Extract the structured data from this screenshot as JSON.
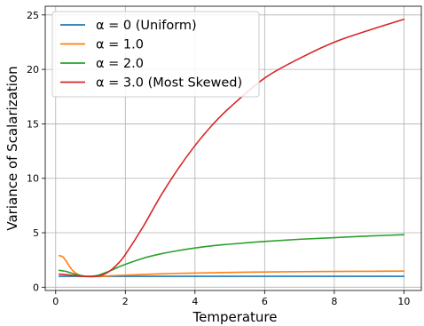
{
  "chart_data": {
    "type": "line",
    "title": "",
    "xlabel": "Temperature",
    "ylabel": "Variance of Scalarization",
    "xlim": [
      -0.3,
      10.5
    ],
    "ylim": [
      -0.3,
      25.8
    ],
    "xticks": [
      0,
      2,
      4,
      6,
      8,
      10
    ],
    "yticks": [
      0,
      5,
      10,
      15,
      20,
      25
    ],
    "grid": true,
    "legend_position": "top-left",
    "x": [
      0.1,
      0.2,
      0.3,
      0.4,
      0.5,
      0.6,
      0.7,
      0.8,
      0.9,
      1.0,
      1.2,
      1.4,
      1.6,
      1.8,
      2.0,
      2.5,
      3.0,
      3.5,
      4.0,
      4.5,
      5.0,
      6.0,
      7.0,
      8.0,
      9.0,
      10.0
    ],
    "series": [
      {
        "name": "α = 0 (Uniform)",
        "color": "#1f77b4",
        "values": [
          1.0,
          1.0,
          1.0,
          1.0,
          1.0,
          1.0,
          1.0,
          1.0,
          1.0,
          1.0,
          1.0,
          1.0,
          1.0,
          1.0,
          1.0,
          1.0,
          1.0,
          1.0,
          1.0,
          1.0,
          1.0,
          1.0,
          1.0,
          1.0,
          1.0,
          1.0
        ]
      },
      {
        "name": "α = 1.0",
        "color": "#ff7f0e",
        "values": [
          2.9,
          2.8,
          2.4,
          1.9,
          1.5,
          1.25,
          1.1,
          1.02,
          1.0,
          1.0,
          1.0,
          1.02,
          1.05,
          1.08,
          1.1,
          1.17,
          1.22,
          1.27,
          1.3,
          1.33,
          1.36,
          1.4,
          1.43,
          1.45,
          1.46,
          1.48
        ]
      },
      {
        "name": "α = 2.0",
        "color": "#2ca02c",
        "values": [
          1.55,
          1.5,
          1.45,
          1.35,
          1.25,
          1.15,
          1.08,
          1.03,
          1.0,
          1.0,
          1.08,
          1.3,
          1.55,
          1.85,
          2.1,
          2.65,
          3.05,
          3.35,
          3.6,
          3.8,
          3.95,
          4.2,
          4.4,
          4.55,
          4.7,
          4.82
        ]
      },
      {
        "name": "α = 3.0 (Most Skewed)",
        "color": "#d62728",
        "values": [
          1.2,
          1.18,
          1.15,
          1.12,
          1.08,
          1.05,
          1.02,
          1.0,
          0.98,
          0.97,
          1.0,
          1.2,
          1.6,
          2.2,
          3.0,
          5.5,
          8.3,
          10.8,
          13.0,
          14.9,
          16.5,
          19.2,
          21.0,
          22.5,
          23.6,
          24.6
        ]
      }
    ]
  }
}
